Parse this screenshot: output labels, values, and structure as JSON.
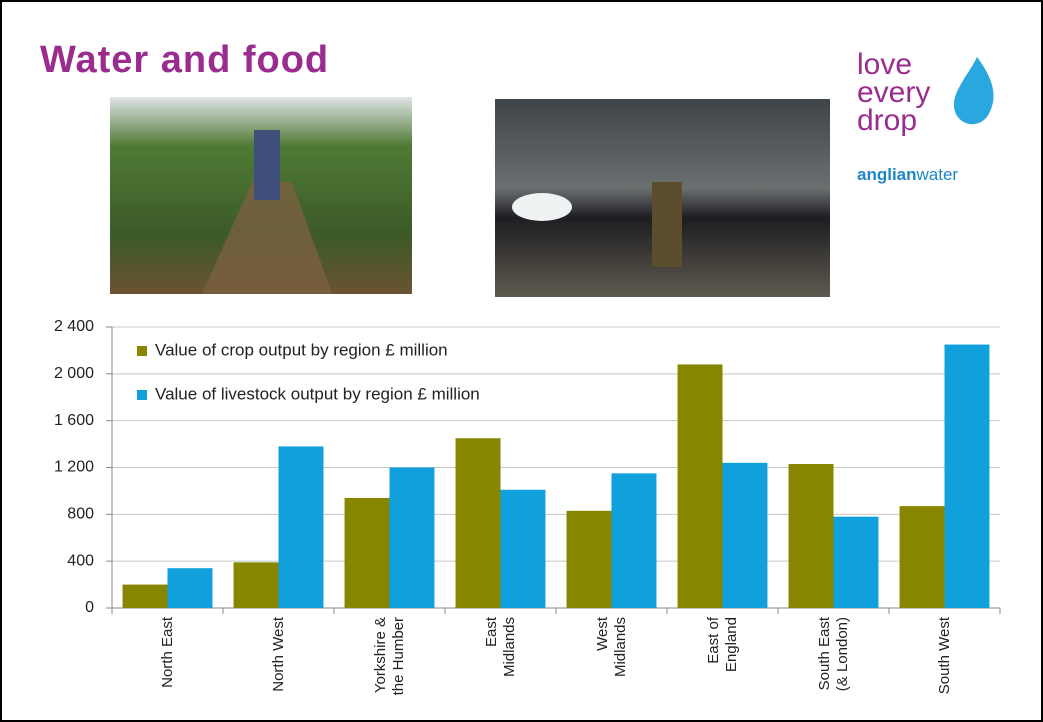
{
  "header": {
    "title": "Water and food"
  },
  "logo": {
    "lines": [
      "love",
      "every",
      "drop"
    ],
    "brand_bold": "anglian",
    "brand_light": "water"
  },
  "chart_data": {
    "type": "bar",
    "categories": [
      "North East",
      "North West",
      "Yorkshire &\nthe Humber",
      "East\nMidlands",
      "West\nMidlands",
      "East of\nEngland",
      "South East\n(& London)",
      "South West"
    ],
    "series": [
      {
        "name": "Value of crop output by region £ million",
        "color": "#868600",
        "values": [
          200,
          390,
          940,
          1450,
          830,
          2080,
          1230,
          870
        ]
      },
      {
        "name": "Value of livestock output by region £ million",
        "color": "#10a0dc",
        "values": [
          340,
          1380,
          1200,
          1010,
          1150,
          1240,
          780,
          2250
        ]
      }
    ],
    "ylim": [
      0,
      2400
    ],
    "yticks": [
      0,
      400,
      800,
      {
        "value": 1200,
        "label": "1 200"
      },
      {
        "value": 1600,
        "label": "1 600"
      },
      {
        "value": 2000,
        "label": "2 000"
      },
      {
        "value": 2400,
        "label": "2 400"
      }
    ],
    "grid": true,
    "legend": "top-left"
  }
}
